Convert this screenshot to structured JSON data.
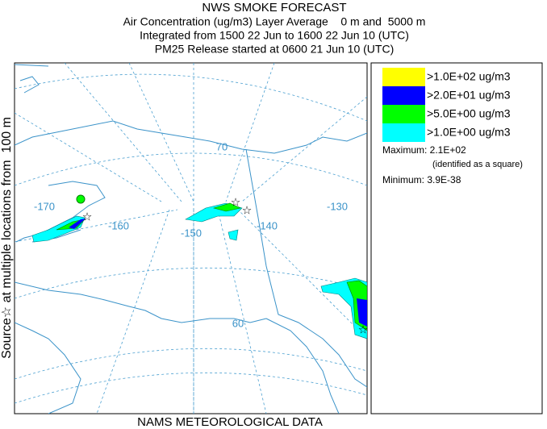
{
  "header": {
    "title": "NWS SMOKE FORECAST",
    "lines": [
      "Air Concentration (ug/m3) Layer Average    0 m and  5000 m",
      "Integrated from 1500 22 Jun to 1600 22 Jun 10 (UTC)",
      "PM25 Release started at 0600 21 Jun 10 (UTC)"
    ]
  },
  "side_label": "Source☆ at multiple locations from  100 m",
  "footer": "NAMS METEOROLOGICAL DATA",
  "map": {
    "labels": [
      "-170",
      "-160",
      "-150",
      "-140",
      "-130",
      "70",
      "60"
    ]
  },
  "legend": {
    "items": [
      {
        "label": ">1.0E+02 ug/m3",
        "color": "#ffff00"
      },
      {
        "label": ">2.0E+01 ug/m3",
        "color": "#0000ff"
      },
      {
        "label": ">5.0E+00 ug/m3",
        "color": "#00ff00"
      },
      {
        "label": ">1.0E+00 ug/m3",
        "color": "#00ffff"
      }
    ],
    "maximum": "Maximum: 2.1E+02",
    "maximum_note": "(identified as a square)",
    "minimum": "Minimum: 3.9E-38"
  }
}
